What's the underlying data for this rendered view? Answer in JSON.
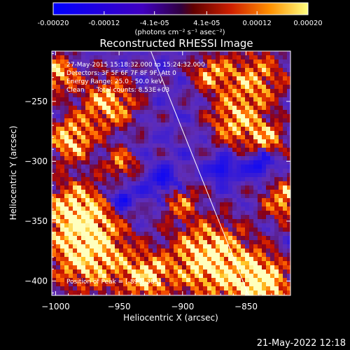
{
  "chart_data": {
    "type": "heatmap",
    "title": "Reconstructed RHESSI Image",
    "xlabel": "Heliocentric X (arcsec)",
    "ylabel": "Heliocentric Y (arcsec)",
    "xlim": [
      -1003,
      -815
    ],
    "ylim": [
      -412,
      -208
    ],
    "xticks": [
      -1000,
      -950,
      -900,
      -850
    ],
    "xtick_labels": [
      "−1000",
      "−950",
      "−900",
      "−850"
    ],
    "yticks": [
      -250,
      -300,
      -350,
      -400
    ],
    "ytick_labels": [
      "−250",
      "−300",
      "−350",
      "−400"
    ],
    "colorbar": {
      "min": -0.0002,
      "max": 0.0002,
      "ticks": [
        -0.0002,
        -0.00012,
        -4.1e-05,
        4.1e-05,
        0.00012,
        0.0002
      ],
      "tick_labels": [
        "-0.00020",
        "-0.00012",
        "-4.1e-05",
        "4.1e-05",
        "0.00012",
        "0.00020"
      ],
      "units": "(photons cm⁻² s⁻¹ asec⁻²)"
    },
    "peak_position": [
      -890,
      -385
    ],
    "limb_line": {
      "points": [
        [
          -925,
          -208
        ],
        [
          -848,
          -412
        ]
      ]
    },
    "annotations": [
      "27-May-2015 15:18:32.000 to 15:24:32.000",
      "Detectors: 3F 5F 6F 7F 8F 9F, Att 0",
      "Energy Range: 25.0 - 50.0 keV",
      "Clean      Total counts: 8.53E+03"
    ],
    "peak_label": "Position of Peak = [-890,-385]"
  },
  "footer_timestamp": "21-May-2022 12:18"
}
